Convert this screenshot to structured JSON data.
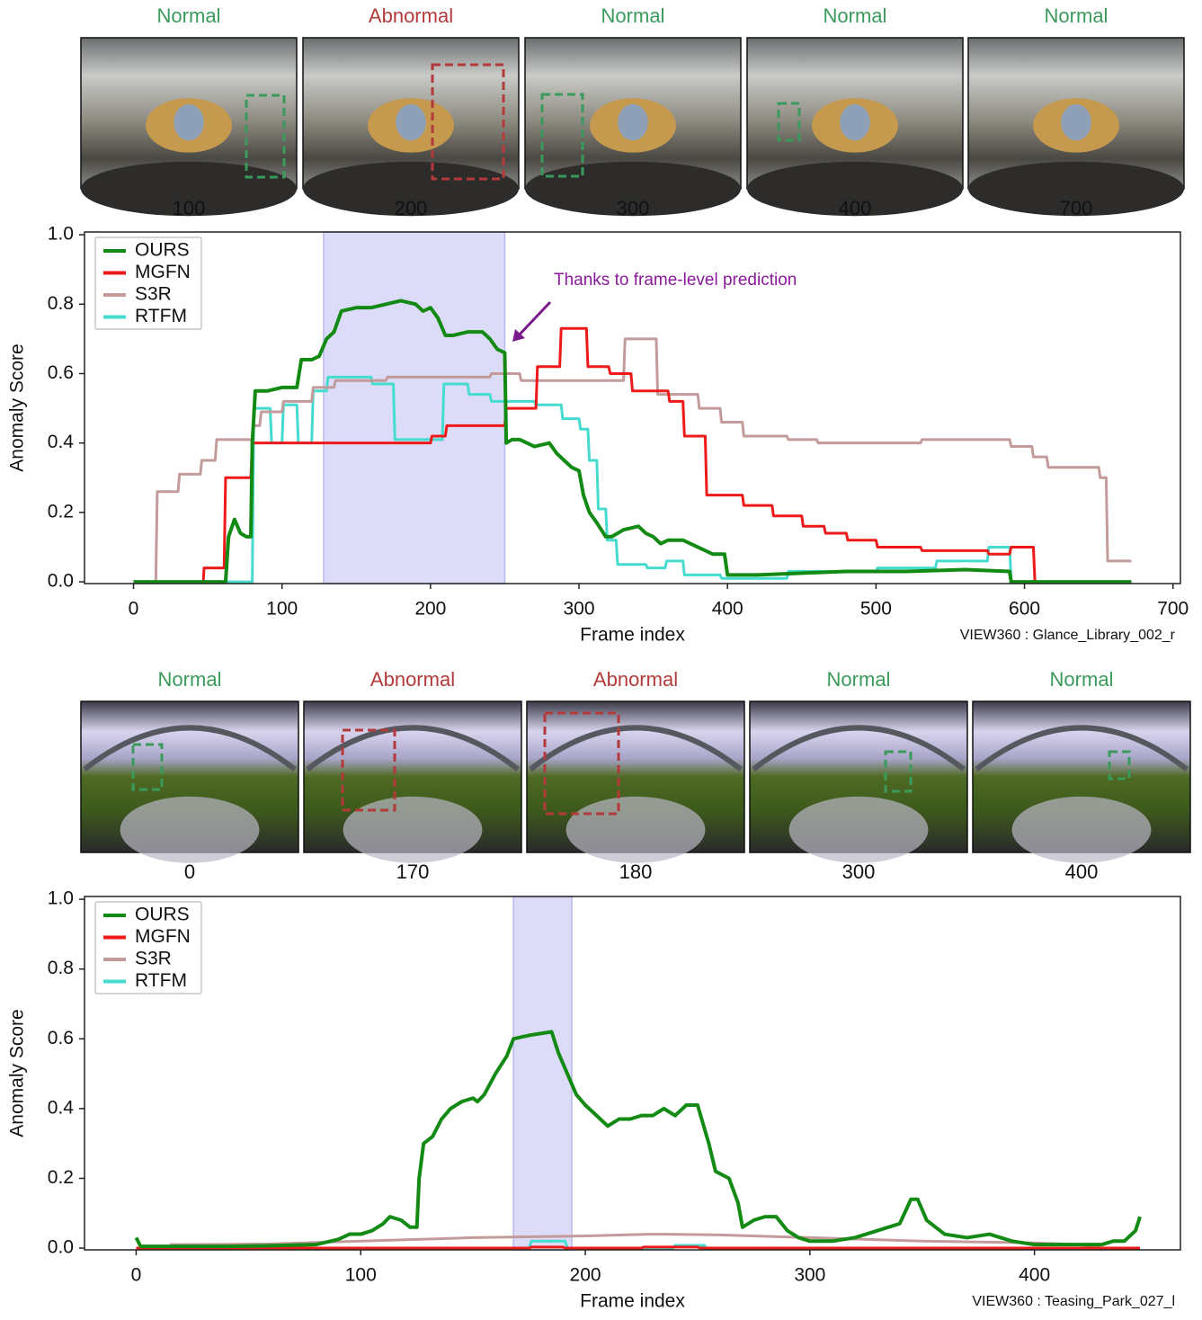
{
  "chart_data": [
    {
      "type": "line",
      "frames": [
        {
          "status": "Normal",
          "frame": 100,
          "color": "#3a9a5c"
        },
        {
          "status": "Abnormal",
          "frame": 200,
          "color": "#b33a3a"
        },
        {
          "status": "Normal",
          "frame": 300,
          "color": "#3a9a5c"
        },
        {
          "status": "Normal",
          "frame": 400,
          "color": "#3a9a5c"
        },
        {
          "status": "Normal",
          "frame": 700,
          "color": "#3a9a5c"
        }
      ],
      "xlabel": "Frame index",
      "ylabel": "Anomaly Score",
      "caption": "VIEW360 : Glance_Library_002_r",
      "annotation": "Thanks to frame-level prediction",
      "shaded_span": [
        128,
        250
      ],
      "shade_color": "#dcdcf8",
      "xlim": [
        -33,
        705
      ],
      "ylim": [
        -0.005,
        1.008
      ],
      "xticks": [
        0,
        100,
        200,
        300,
        400,
        500,
        600,
        700
      ],
      "yticks": [
        {
          "value": 0,
          "label": "0.0"
        },
        0.2,
        0.4,
        0.6,
        0.8,
        {
          "value": 1,
          "label": "1.0"
        }
      ],
      "grid": false,
      "legend": "upper left",
      "series": [
        {
          "name": "OURS",
          "color": "#138a13",
          "width": 4,
          "x": [
            0,
            62,
            64,
            68,
            72,
            76,
            79,
            80,
            82,
            90,
            100,
            110,
            113,
            120,
            125,
            130,
            135,
            140,
            150,
            160,
            170,
            180,
            190,
            195,
            200,
            205,
            210,
            215,
            225,
            235,
            240,
            245,
            250,
            251,
            255,
            260,
            270,
            280,
            285,
            290,
            295,
            300,
            303,
            307,
            312,
            318,
            322,
            330,
            340,
            345,
            350,
            355,
            360,
            370,
            380,
            385,
            390,
            398,
            400,
            420,
            450,
            480,
            520,
            560,
            590,
            591,
            672
          ],
          "values": [
            0,
            0,
            0.13,
            0.18,
            0.14,
            0.13,
            0.13,
            0.4,
            0.55,
            0.55,
            0.56,
            0.56,
            0.64,
            0.64,
            0.65,
            0.7,
            0.72,
            0.78,
            0.79,
            0.79,
            0.8,
            0.81,
            0.8,
            0.78,
            0.79,
            0.76,
            0.71,
            0.71,
            0.72,
            0.72,
            0.7,
            0.67,
            0.66,
            0.4,
            0.41,
            0.41,
            0.39,
            0.4,
            0.37,
            0.35,
            0.33,
            0.32,
            0.25,
            0.2,
            0.17,
            0.13,
            0.13,
            0.15,
            0.16,
            0.14,
            0.13,
            0.11,
            0.12,
            0.12,
            0.1,
            0.09,
            0.08,
            0.08,
            0.02,
            0.02,
            0.025,
            0.03,
            0.03,
            0.035,
            0.03,
            0,
            0
          ]
        },
        {
          "name": "MGFN",
          "color": "#ee1a1a",
          "width": 3,
          "x": [
            0,
            47,
            47.5,
            61,
            62,
            79,
            80,
            200,
            201,
            210,
            211,
            250,
            251,
            271,
            272,
            287,
            288,
            305,
            306,
            320,
            321,
            335,
            336,
            360,
            361,
            370,
            371,
            385,
            386,
            410,
            411,
            430,
            431,
            450,
            451,
            465,
            466,
            480,
            481,
            500,
            501,
            530,
            531,
            575,
            576,
            590,
            591,
            606,
            607
          ],
          "values": [
            0,
            0,
            0.04,
            0.04,
            0.3,
            0.3,
            0.4,
            0.4,
            0.42,
            0.42,
            0.45,
            0.45,
            0.5,
            0.5,
            0.62,
            0.62,
            0.73,
            0.73,
            0.62,
            0.62,
            0.6,
            0.6,
            0.55,
            0.55,
            0.52,
            0.52,
            0.42,
            0.42,
            0.25,
            0.25,
            0.22,
            0.22,
            0.19,
            0.19,
            0.16,
            0.16,
            0.14,
            0.14,
            0.12,
            0.12,
            0.1,
            0.1,
            0.09,
            0.09,
            0.08,
            0.08,
            0.1,
            0.1,
            0
          ]
        },
        {
          "name": "S3R",
          "color": "#c49b9b",
          "width": 3,
          "x": [
            0,
            15,
            16,
            30,
            31,
            45,
            46,
            55,
            56,
            80,
            81,
            85,
            86,
            100,
            101,
            120,
            121,
            135,
            136,
            170,
            171,
            240,
            241,
            260,
            261,
            330,
            331,
            352,
            353,
            380,
            381,
            395,
            396,
            410,
            411,
            440,
            441,
            460,
            461,
            530,
            531,
            590,
            591,
            605,
            606,
            615,
            616,
            650,
            651,
            655,
            656,
            672
          ],
          "values": [
            0,
            0,
            0.26,
            0.26,
            0.31,
            0.31,
            0.35,
            0.35,
            0.41,
            0.41,
            0.45,
            0.45,
            0.49,
            0.49,
            0.52,
            0.52,
            0.56,
            0.56,
            0.58,
            0.58,
            0.59,
            0.59,
            0.6,
            0.6,
            0.58,
            0.58,
            0.7,
            0.7,
            0.54,
            0.54,
            0.5,
            0.5,
            0.46,
            0.46,
            0.42,
            0.42,
            0.41,
            0.41,
            0.4,
            0.4,
            0.41,
            0.41,
            0.39,
            0.39,
            0.36,
            0.36,
            0.33,
            0.33,
            0.3,
            0.3,
            0.06,
            0.06
          ]
        },
        {
          "name": "RTFM",
          "color": "#45dccf",
          "width": 3,
          "x": [
            0,
            80,
            81,
            92,
            93,
            100,
            101,
            110,
            111,
            120,
            121,
            130,
            131,
            160,
            161,
            175,
            176,
            208,
            209,
            225,
            226,
            240,
            241,
            270,
            271,
            288,
            289,
            300,
            301,
            306,
            307,
            312,
            313,
            318,
            319,
            325,
            326,
            345,
            346,
            358,
            359,
            370,
            371,
            395,
            396,
            440,
            441,
            500,
            501,
            540,
            541,
            575,
            576,
            590,
            591,
            672
          ],
          "values": [
            0,
            0,
            0.5,
            0.5,
            0.4,
            0.4,
            0.51,
            0.51,
            0.4,
            0.4,
            0.55,
            0.55,
            0.59,
            0.59,
            0.57,
            0.57,
            0.41,
            0.41,
            0.57,
            0.57,
            0.54,
            0.54,
            0.52,
            0.52,
            0.51,
            0.51,
            0.47,
            0.47,
            0.44,
            0.44,
            0.35,
            0.35,
            0.21,
            0.21,
            0.12,
            0.12,
            0.05,
            0.05,
            0.04,
            0.04,
            0.06,
            0.06,
            0.02,
            0.02,
            0.01,
            0.01,
            0.03,
            0.03,
            0.04,
            0.04,
            0.06,
            0.06,
            0.1,
            0.1,
            0,
            0
          ]
        }
      ]
    },
    {
      "type": "line",
      "frames": [
        {
          "status": "Normal",
          "frame": 0,
          "color": "#3a9a5c"
        },
        {
          "status": "Abnormal",
          "frame": 170,
          "color": "#b33a3a"
        },
        {
          "status": "Abnormal",
          "frame": 180,
          "color": "#b33a3a"
        },
        {
          "status": "Normal",
          "frame": 300,
          "color": "#3a9a5c"
        },
        {
          "status": "Normal",
          "frame": 400,
          "color": "#3a9a5c"
        }
      ],
      "xlabel": "Frame index",
      "ylabel": "Anomaly Score",
      "caption": "VIEW360 : Teasing_Park_027_l",
      "shaded_span": [
        168,
        194
      ],
      "shade_color": "#dcdcf8",
      "xlim": [
        -23,
        465
      ],
      "ylim": [
        -0.005,
        1.008
      ],
      "xticks": [
        0,
        100,
        200,
        300,
        400
      ],
      "yticks": [
        {
          "value": 0,
          "label": "0.0"
        },
        0.2,
        0.4,
        0.6,
        0.8,
        {
          "value": 1,
          "label": "1.0"
        }
      ],
      "grid": false,
      "legend": "upper left",
      "series": [
        {
          "name": "OURS",
          "color": "#138a13",
          "width": 4,
          "x": [
            0,
            2,
            10,
            40,
            60,
            80,
            90,
            95,
            100,
            105,
            110,
            113,
            118,
            122,
            125,
            126,
            128,
            132,
            136,
            140,
            145,
            150,
            152,
            155,
            160,
            165,
            168,
            175,
            185,
            188,
            192,
            196,
            200,
            205,
            210,
            215,
            220,
            225,
            230,
            235,
            240,
            245,
            250,
            255,
            258,
            264,
            268,
            270,
            275,
            280,
            285,
            290,
            295,
            300,
            310,
            320,
            330,
            340,
            345,
            348,
            352,
            360,
            370,
            380,
            385,
            390,
            400,
            420,
            430,
            435,
            440,
            445,
            447
          ],
          "values": [
            0.03,
            0.005,
            0.005,
            0.005,
            0.007,
            0.01,
            0.025,
            0.04,
            0.04,
            0.05,
            0.07,
            0.09,
            0.08,
            0.06,
            0.06,
            0.2,
            0.3,
            0.32,
            0.37,
            0.4,
            0.42,
            0.43,
            0.42,
            0.44,
            0.5,
            0.55,
            0.6,
            0.61,
            0.62,
            0.56,
            0.5,
            0.44,
            0.41,
            0.38,
            0.35,
            0.37,
            0.37,
            0.38,
            0.38,
            0.4,
            0.38,
            0.41,
            0.41,
            0.3,
            0.22,
            0.2,
            0.13,
            0.06,
            0.08,
            0.09,
            0.09,
            0.05,
            0.03,
            0.02,
            0.02,
            0.03,
            0.05,
            0.07,
            0.14,
            0.14,
            0.08,
            0.04,
            0.03,
            0.04,
            0.03,
            0.02,
            0.01,
            0.01,
            0.01,
            0.02,
            0.02,
            0.05,
            0.09
          ]
        },
        {
          "name": "MGFN",
          "color": "#ee1a1a",
          "width": 3,
          "x": [
            0,
            175,
            176,
            190,
            191,
            225,
            226,
            250,
            251,
            447
          ],
          "values": [
            0,
            0,
            0.003,
            0.003,
            0,
            0,
            0.003,
            0.003,
            0,
            0
          ]
        },
        {
          "name": "S3R",
          "color": "#c49b9b",
          "width": 3,
          "x": [
            15,
            60,
            100,
            150,
            200,
            230,
            260,
            300,
            350,
            400,
            420,
            430
          ],
          "values": [
            0.01,
            0.012,
            0.02,
            0.03,
            0.035,
            0.04,
            0.038,
            0.03,
            0.02,
            0.015,
            0.01,
            0
          ]
        },
        {
          "name": "RTFM",
          "color": "#45dccf",
          "width": 3,
          "x": [
            0,
            175,
            176,
            191,
            192,
            239,
            240,
            253,
            254,
            447
          ],
          "values": [
            0,
            0,
            0.02,
            0.02,
            0,
            0,
            0.008,
            0.008,
            0,
            0
          ]
        }
      ]
    }
  ]
}
